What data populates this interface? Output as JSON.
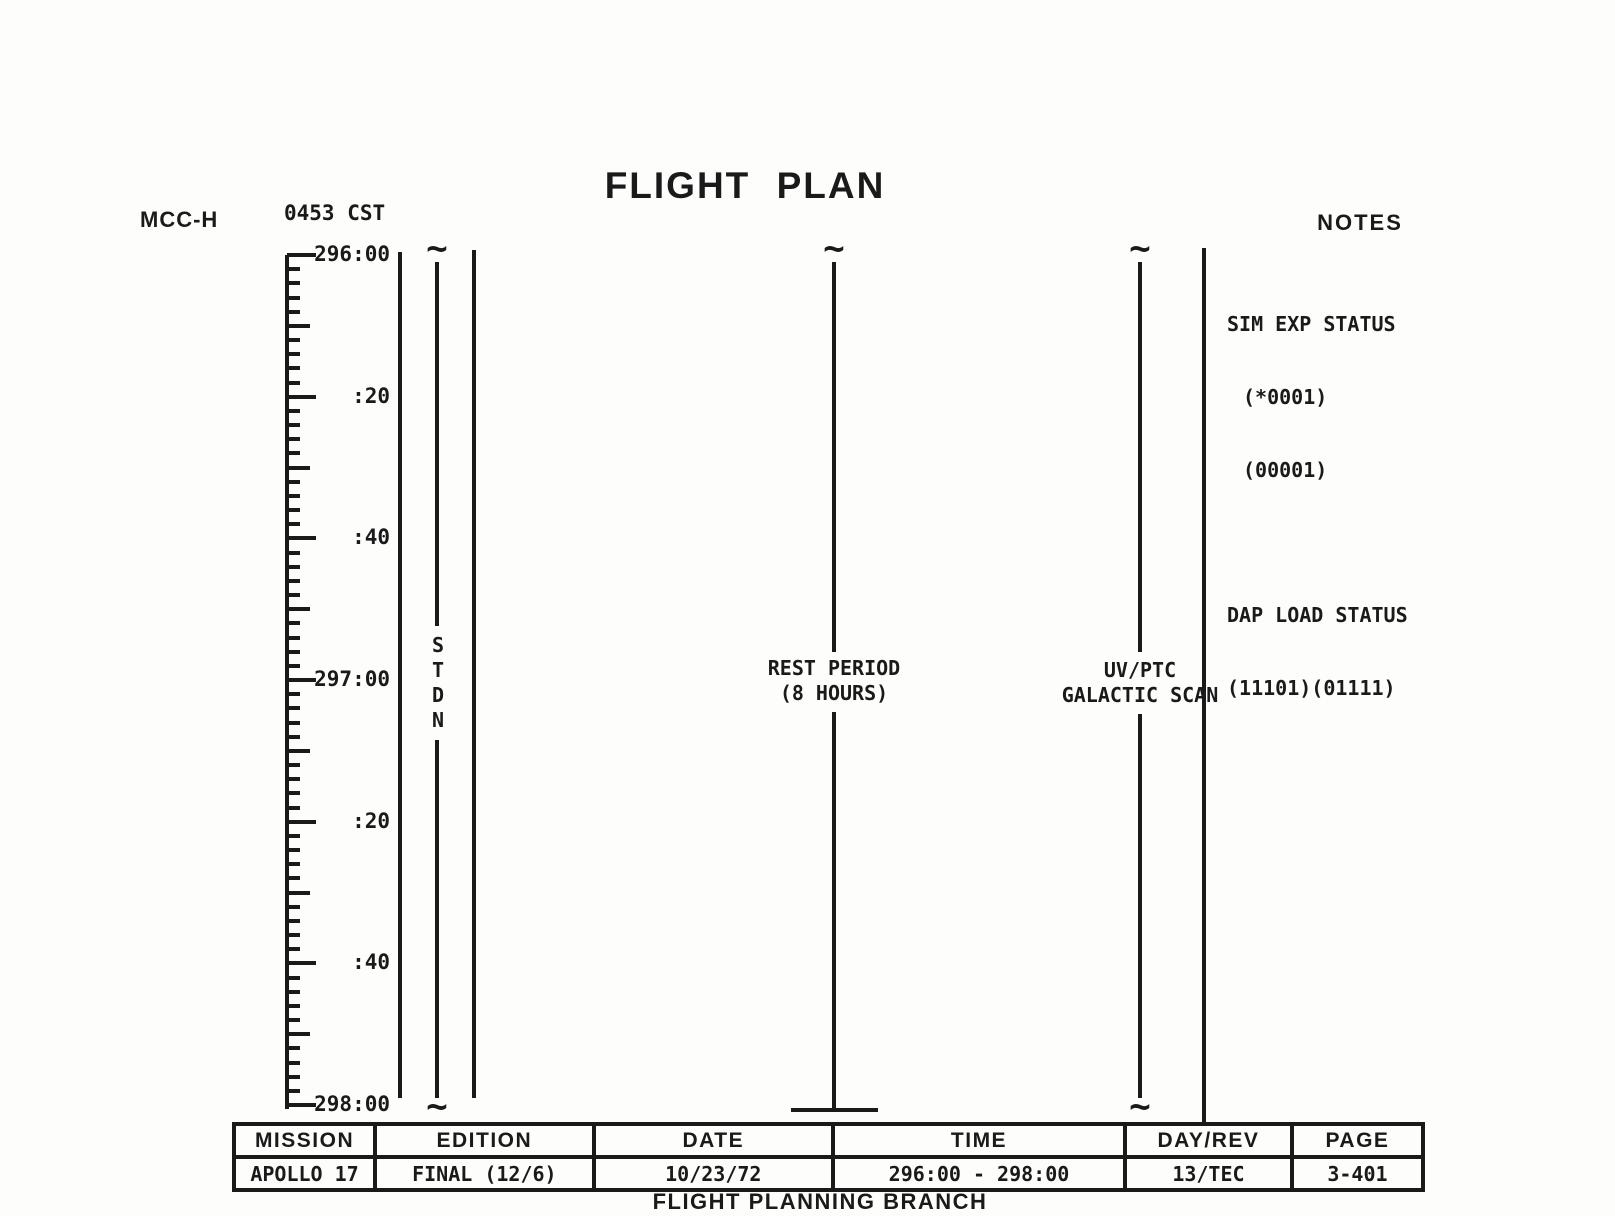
{
  "header": {
    "station": "MCC-H",
    "cst_time": "0453 CST",
    "title": "FLIGHT PLAN"
  },
  "timeline": {
    "tick_labels": [
      "296:00",
      ":20",
      ":40",
      "297:00",
      ":20",
      ":40",
      "298:00"
    ],
    "start": "296:00",
    "end": "298:00",
    "minor_tick_minutes": 2,
    "medium_tick_minutes": 10,
    "labeled_tick_minutes": 20
  },
  "tracks": {
    "squiggle": "~",
    "stdn_letters": [
      "S",
      "T",
      "D",
      "N"
    ],
    "rest_period": [
      "REST PERIOD",
      "(8 HOURS)"
    ],
    "uv_scan": [
      "UV/PTC",
      "GALACTIC SCAN"
    ]
  },
  "notes": {
    "header": "NOTES",
    "sim_exp": [
      "SIM EXP STATUS",
      "(*0001)",
      "(00001)"
    ],
    "dap_load": [
      "DAP LOAD STATUS",
      "(11101)(01111)"
    ]
  },
  "footer_table": {
    "columns": [
      {
        "header": "MISSION",
        "value": "APOLLO 17"
      },
      {
        "header": "EDITION",
        "value": "FINAL (12/6)"
      },
      {
        "header": "DATE",
        "value": "10/23/72"
      },
      {
        "header": "TIME",
        "value": "296:00 - 298:00"
      },
      {
        "header": "DAY/REV",
        "value": "13/TEC"
      },
      {
        "header": "PAGE",
        "value": "3-401"
      }
    ]
  },
  "branch": "FLIGHT PLANNING BRANCH",
  "colors": {
    "ink": "#1a1a1a",
    "paper": "#fdfdfb"
  }
}
